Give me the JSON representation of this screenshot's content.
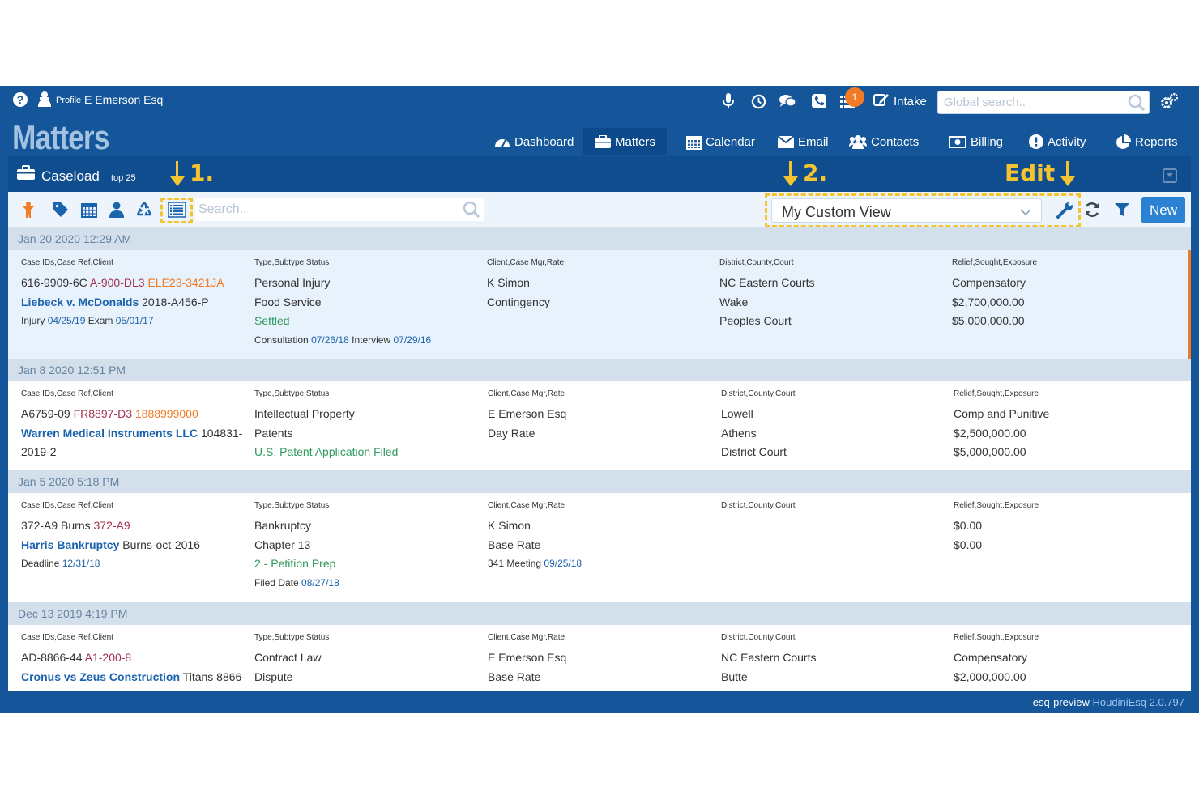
{
  "topbar": {
    "help_icon": "question-circle-icon",
    "profile_label": "Profile",
    "user_name": "E Emerson Esq",
    "notification_count": "1",
    "intake_label": "Intake",
    "search_placeholder": "Global search.."
  },
  "app_title": "Matters",
  "nav": {
    "dashboard": "Dashboard",
    "matters": "Matters",
    "calendar": "Calendar",
    "email": "Email",
    "contacts": "Contacts",
    "billing": "Billing",
    "activity": "Activity",
    "reports": "Reports"
  },
  "caseload": {
    "title": "Caseload",
    "subtitle": "top 25"
  },
  "annotations": {
    "step1": "1.",
    "step2": "2.",
    "edit": "Edit"
  },
  "toolbar": {
    "search_placeholder": "Search..",
    "view_selected": "My Custom View",
    "new_label": "New"
  },
  "colors": {
    "brand_blue": "#15569a",
    "annotation_yellow": "#f4c430",
    "accent_orange": "#f07a25",
    "status_green": "#2e9a5e"
  },
  "labels": {
    "col1": "Case IDs,Case Ref,Client",
    "col2": "Type,Subtype,Status",
    "col3": "Client,Case Mgr,Rate",
    "col4": "District,County,Court",
    "col5": "Relief,Sought,Exposure"
  },
  "records": [
    {
      "date": "Jan 20 2020 12:29 AM",
      "case_id": "616-9909-6C",
      "case_ref": "A-900-DL3",
      "case_ref2": "ELE23-3421JA",
      "client_name": "Liebeck v. McDonalds",
      "client_ref": "2018-A456-P",
      "extra1_label": "Injury",
      "extra1_date": "04/25/19",
      "extra2_label": "Exam",
      "extra2_date": "05/01/17",
      "type": "Personal Injury",
      "subtype": "Food Service",
      "status": "Settled",
      "sub1_label": "Consultation",
      "sub1_date": "07/26/18",
      "sub2_label": "Interview",
      "sub2_date": "07/29/16",
      "mgr": "K Simon",
      "rate": "Contingency",
      "district": "NC Eastern Courts",
      "county": "Wake",
      "court": "Peoples Court",
      "relief": "Compensatory",
      "sought": "$2,700,000.00",
      "exposure": "$5,000,000.00"
    },
    {
      "date": "Jan 8 2020 12:51 PM",
      "case_id": "A6759-09",
      "case_ref": "FR8897-D3",
      "case_ref2": "1888999000",
      "client_name": "Warren Medical Instruments LLC",
      "client_ref": "104831-",
      "client_ref_cont": "2019-2",
      "type": "Intellectual Property",
      "subtype": "Patents",
      "status": "U.S. Patent Application Filed",
      "mgr": "E Emerson Esq",
      "rate": "Day Rate",
      "district": "Lowell",
      "county": "Athens",
      "court": "District Court",
      "relief": "Comp and Punitive",
      "sought": "$2,500,000.00",
      "exposure": "$5,000,000.00"
    },
    {
      "date": "Jan 5 2020 5:18 PM",
      "case_id": "372-A9 Burns",
      "case_ref": "372-A9",
      "client_name": "Harris Bankruptcy",
      "client_ref": "Burns-oct-2016",
      "extra1_label": "Deadline",
      "extra1_date": "12/31/18",
      "type": "Bankruptcy",
      "subtype": "Chapter 13",
      "status": "2 - Petition Prep",
      "sub1_label": "Filed Date",
      "sub1_date": "08/27/18",
      "mgr": "K Simon",
      "rate": "Base Rate",
      "mgr_extra_label": "341 Meeting",
      "mgr_extra_date": "09/25/18",
      "sought": "$0.00",
      "exposure": "$0.00"
    },
    {
      "date": "Dec 13 2019 4:19 PM",
      "case_id": "AD-8866-44",
      "case_ref": "A1-200-8",
      "client_name": "Cronus vs Zeus Construction",
      "client_ref": "Titans 8866-",
      "type": "Contract Law",
      "subtype": "Dispute",
      "mgr": "E Emerson Esq",
      "rate": "Base Rate",
      "district": "NC Eastern Courts",
      "county": "Butte",
      "relief": "Compensatory",
      "sought": "$2,000,000.00"
    }
  ],
  "footer": {
    "env": "esq-preview",
    "product": "HoudiniEsq 2.0.797"
  }
}
